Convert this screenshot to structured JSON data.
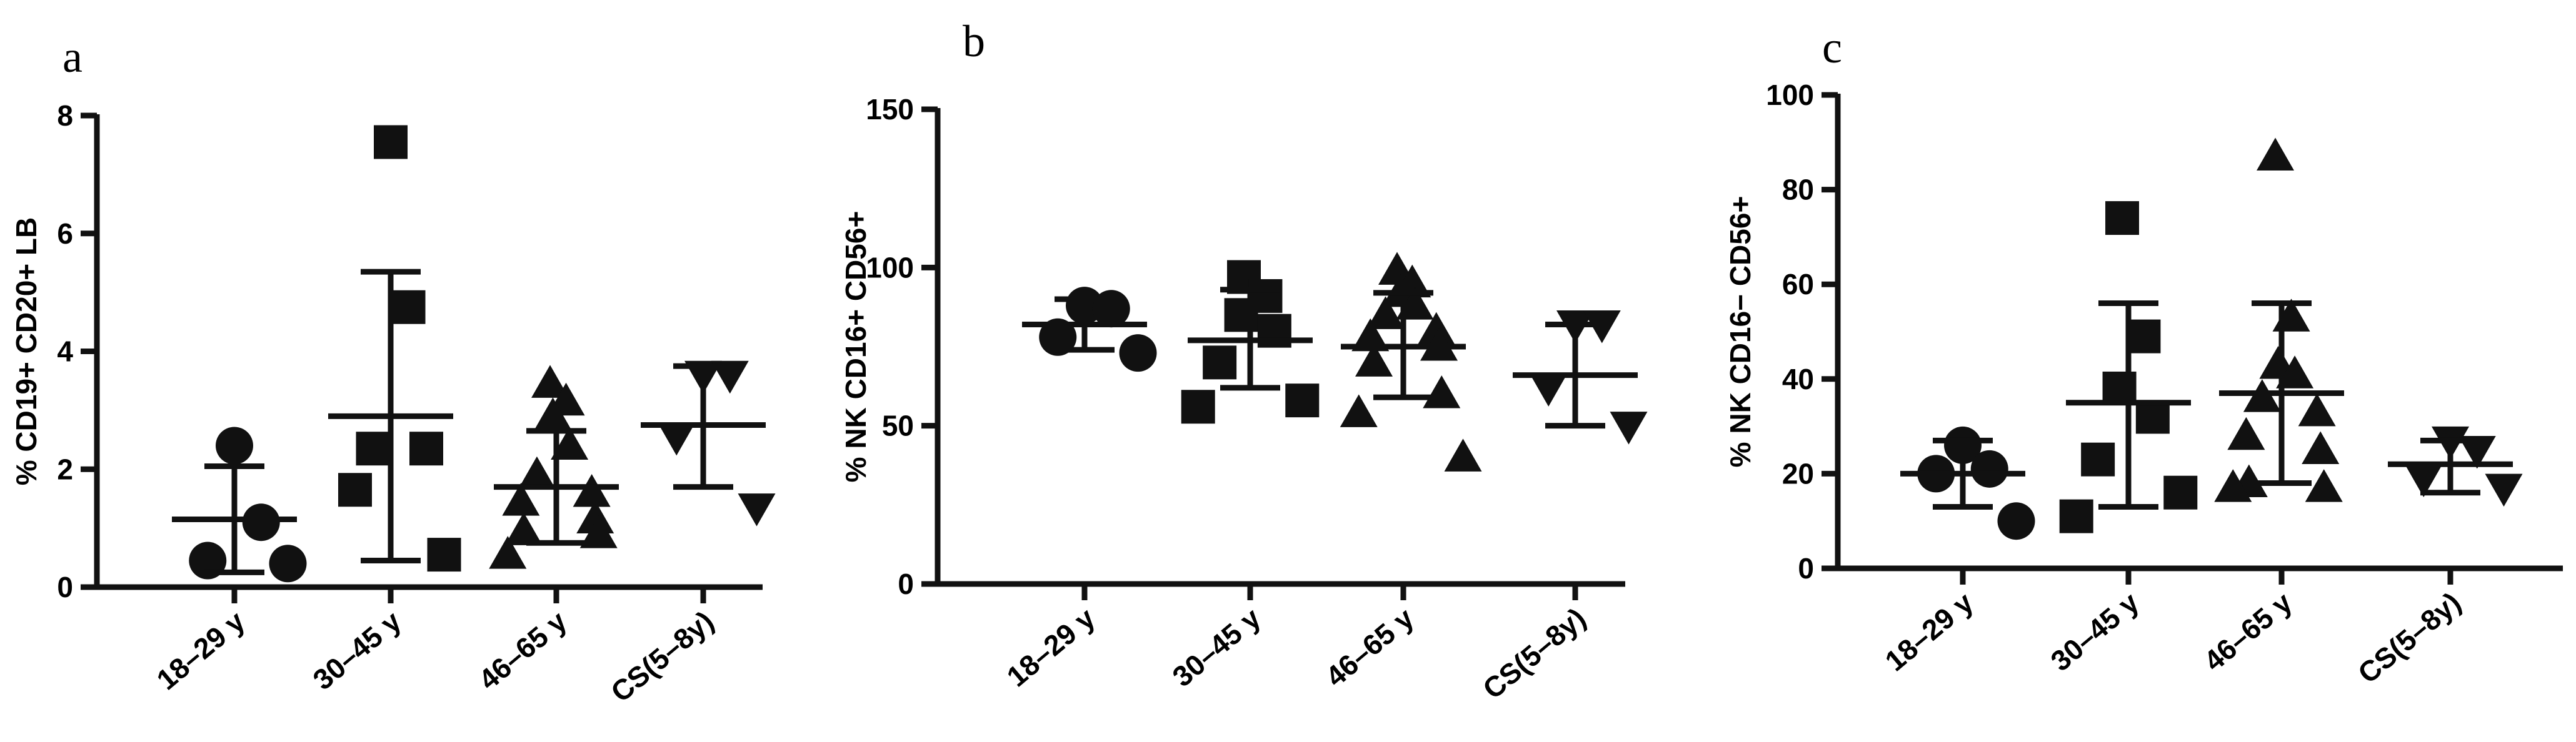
{
  "chart_data": [
    {
      "type": "scatter",
      "panel": "a",
      "ylabel": "% CD19+ CD20+ LB",
      "ylim": [
        0,
        8
      ],
      "yticks": [
        "0",
        "2",
        "4",
        "6",
        "8"
      ],
      "categories": [
        "18–29 y",
        "30–45 y",
        "46–65 y",
        "CS(5–8y)"
      ],
      "markers": [
        "circle",
        "square",
        "triangle-up",
        "triangle-down"
      ],
      "groups": [
        {
          "points": [
            2.4,
            1.1,
            0.45,
            0.4
          ],
          "mean": 1.15,
          "sd_upper": 2.05,
          "sd_lower": 0.25
        },
        {
          "points": [
            7.55,
            4.75,
            2.35,
            2.35,
            1.65,
            0.55
          ],
          "mean": 2.9,
          "sd_upper": 5.35,
          "sd_lower": 0.45
        },
        {
          "points": [
            3.45,
            3.15,
            2.9,
            2.4,
            1.9,
            1.6,
            1.45,
            1.15,
            0.95,
            0.9,
            0.55
          ],
          "mean": 1.7,
          "sd_upper": 2.65,
          "sd_lower": 0.75
        },
        {
          "points": [
            3.6,
            3.6,
            2.55,
            1.35
          ],
          "mean": 2.75,
          "sd_upper": 3.75,
          "sd_lower": 1.7
        }
      ]
    },
    {
      "type": "scatter",
      "panel": "b",
      "ylabel": "% NK CD16+ CD56+",
      "ylim": [
        0,
        150
      ],
      "yticks": [
        "0",
        "50",
        "100",
        "150"
      ],
      "categories": [
        "18–29 y",
        "30–45 y",
        "46–65 y",
        "CS(5–8y)"
      ],
      "markers": [
        "circle",
        "square",
        "triangle-up",
        "triangle-down"
      ],
      "groups": [
        {
          "points": [
            88,
            87,
            78,
            73
          ],
          "mean": 82,
          "sd_upper": 90,
          "sd_lower": 74
        },
        {
          "points": [
            97,
            91,
            85,
            80,
            70,
            58,
            56
          ],
          "mean": 77,
          "sd_upper": 93,
          "sd_lower": 62
        },
        {
          "points": [
            99,
            95,
            92,
            88,
            85,
            80,
            78,
            75,
            70,
            60,
            54,
            40
          ],
          "mean": 75,
          "sd_upper": 92,
          "sd_lower": 59
        },
        {
          "points": [
            82,
            82,
            62,
            50
          ],
          "mean": 66,
          "sd_upper": 82,
          "sd_lower": 50
        }
      ]
    },
    {
      "type": "scatter",
      "panel": "c",
      "ylabel": "% NK CD16− CD56+",
      "ylim": [
        0,
        100
      ],
      "yticks": [
        "0",
        "20",
        "40",
        "60",
        "80",
        "100"
      ],
      "categories": [
        "18–29 y",
        "30–45 y",
        "46–65 y",
        "CS(5–8y)"
      ],
      "markers": [
        "circle",
        "square",
        "triangle-up",
        "triangle-down"
      ],
      "groups": [
        {
          "points": [
            26,
            21,
            20,
            10
          ],
          "mean": 20,
          "sd_upper": 27,
          "sd_lower": 13
        },
        {
          "points": [
            74,
            49,
            38,
            32,
            23,
            16,
            11
          ],
          "mean": 35,
          "sd_upper": 56,
          "sd_lower": 13
        },
        {
          "points": [
            87,
            53,
            43,
            41,
            36,
            33,
            28,
            25,
            18,
            17,
            17
          ],
          "mean": 37,
          "sd_upper": 56,
          "sd_lower": 18
        },
        {
          "points": [
            27,
            25,
            19,
            17
          ],
          "mean": 22,
          "sd_upper": 27,
          "sd_lower": 16
        }
      ]
    }
  ]
}
